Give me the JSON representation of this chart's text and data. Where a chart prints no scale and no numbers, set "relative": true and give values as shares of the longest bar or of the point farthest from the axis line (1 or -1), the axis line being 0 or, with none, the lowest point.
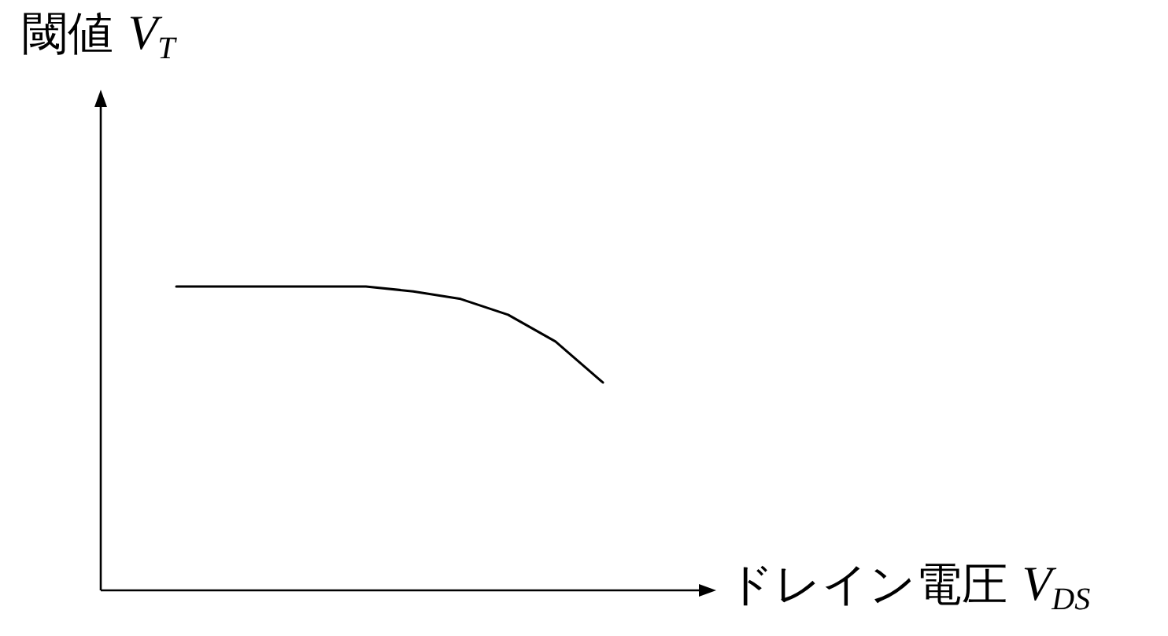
{
  "chart_data": {
    "type": "line",
    "relative": true,
    "color": "#000000",
    "ylabel": "閾値 V$_{T}$",
    "xlabel": "ドレイン電圧 V$_{DS}$",
    "categories": [
      null,
      null,
      null,
      null,
      null,
      null,
      null,
      null,
      null,
      null
    ],
    "values": [
      1,
      1,
      1,
      1,
      1,
      0.984,
      0.959,
      0.907,
      0.819,
      0.684
    ]
  }
}
